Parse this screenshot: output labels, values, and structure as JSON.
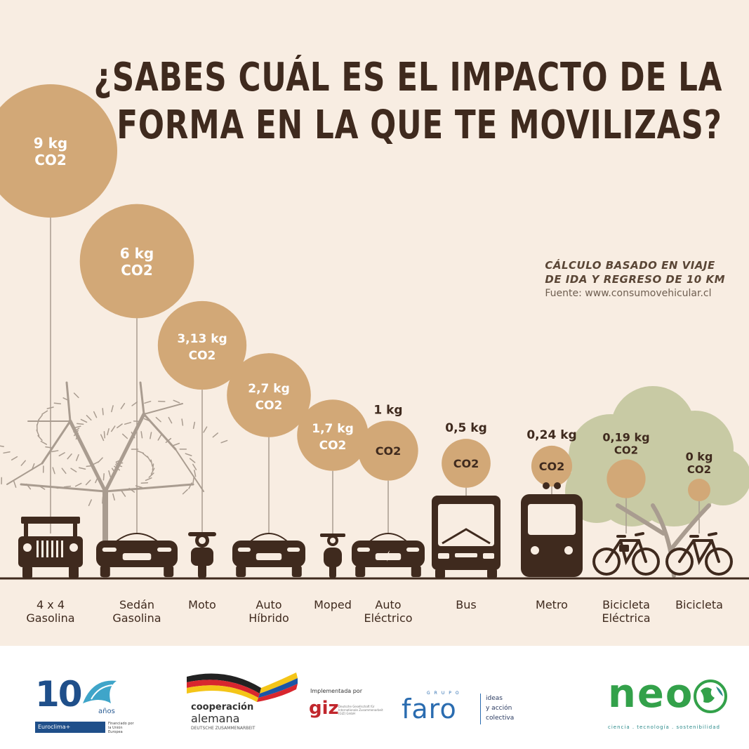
{
  "title": {
    "line1": "¿SABES CUÁL ES EL IMPACTO DE LA",
    "line2": "FORMA EN LA QUE TE MOVILIZAS?"
  },
  "note": {
    "line1": "CÁLCULO BASADO EN VIAJE",
    "line2": "DE IDA Y REGRESO DE 10 KM",
    "line3": "Fuente: www.consumovehicular.cl"
  },
  "chart_data": {
    "type": "bubble",
    "unit": "kg",
    "pollutant": "CO2",
    "series": [
      {
        "value": 9,
        "value_label": "9 kg",
        "category_lines": [
          "4 x 4",
          "Gasolina"
        ],
        "icon": "jeep-icon"
      },
      {
        "value": 6,
        "value_label": "6 kg",
        "category_lines": [
          "Sedán",
          "Gasolina"
        ],
        "icon": "sedan-car-icon"
      },
      {
        "value": 3.13,
        "value_label": "3,13 kg",
        "category_lines": [
          "Moto"
        ],
        "icon": "motorcycle-icon"
      },
      {
        "value": 2.7,
        "value_label": "2,7 kg",
        "category_lines": [
          "Auto",
          "Híbrido"
        ],
        "icon": "hybrid-car-icon"
      },
      {
        "value": 1.7,
        "value_label": "1,7 kg",
        "category_lines": [
          "Moped"
        ],
        "icon": "moped-icon"
      },
      {
        "value": 1,
        "value_label": "1 kg",
        "category_lines": [
          "Auto",
          "Eléctrico"
        ],
        "icon": "electric-car-icon"
      },
      {
        "value": 0.5,
        "value_label": "0,5 kg",
        "category_lines": [
          "Bus"
        ],
        "icon": "bus-icon"
      },
      {
        "value": 0.24,
        "value_label": "0,24 kg",
        "category_lines": [
          "Metro"
        ],
        "icon": "metro-train-icon"
      },
      {
        "value": 0.19,
        "value_label": "0,19 kg",
        "category_lines": [
          "Bicicleta",
          "Eléctrica"
        ],
        "icon": "electric-bicycle-icon"
      },
      {
        "value": 0,
        "value_label": "0 kg",
        "category_lines": [
          "Bicicleta"
        ],
        "icon": "bicycle-icon"
      }
    ]
  },
  "footer": {
    "euroclima": {
      "number": "10",
      "anos": "años",
      "bar": "Euroclima+",
      "eu_text": "Financiado por la Unión Europea"
    },
    "cooperacion": {
      "line1": "cooperación",
      "line2": "alemana",
      "line3": "DEUTSCHE ZUSAMMENARBEIT"
    },
    "giz": {
      "implementada": "Implementada por",
      "word": "giz",
      "small": "Deutsche Gesellschaft für Internationale Zusammenarbeit (GIZ) GmbH"
    },
    "faro": {
      "grupo": "GRUPO",
      "word": "faro",
      "tag1": "ideas",
      "tag2": "y acción",
      "tag3": "colectiva"
    },
    "neo": {
      "word": "neo",
      "tag": "ciencia . tecnología . sostenibilidad"
    }
  },
  "colors": {
    "background": "#f8ede2",
    "bubble": "#d2a877",
    "ink": "#3f2a1e",
    "tree_gray": "#a99c90",
    "tree_green": "#c8caa4"
  }
}
